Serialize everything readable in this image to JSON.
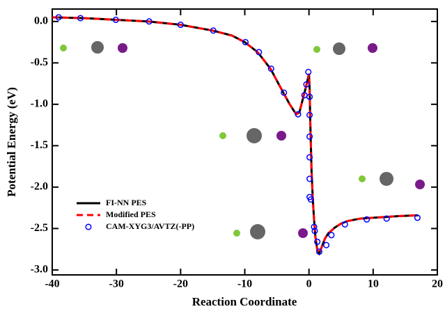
{
  "chart_data": {
    "type": "line",
    "x_label": "Reaction Coordinate",
    "y_label": "Potential Energy (eV)",
    "xlim": [
      -40,
      20
    ],
    "ylim": [
      -3.06,
      0.15
    ],
    "xticks": [
      -40,
      -30,
      -20,
      -10,
      0,
      10,
      20
    ],
    "yticks": [
      {
        "value": 0,
        "label": "0.0"
      },
      -0.5,
      {
        "value": -1,
        "label": "-1.0"
      },
      -1.5,
      {
        "value": -2,
        "label": "-2.0"
      },
      -2.5,
      {
        "value": -3,
        "label": "-3.0"
      }
    ],
    "x": [
      -40,
      -35,
      -30,
      -25,
      -20,
      -15,
      -12,
      -10,
      -8,
      -6,
      -4,
      -3,
      -2,
      -1.5,
      -1,
      -0.5,
      -0.2,
      0,
      0.1,
      0.2,
      0.4,
      0.6,
      0.8,
      1,
      1.3,
      1.6,
      2,
      2.5,
      3,
      4,
      5,
      6,
      8,
      10,
      12,
      14,
      17
    ],
    "series": [
      {
        "name": "FI-NN PES",
        "color": "#000000",
        "style": "solid",
        "values": [
          0.05,
          0.04,
          0.02,
          0,
          -0.04,
          -0.11,
          -0.17,
          -0.25,
          -0.37,
          -0.57,
          -0.86,
          -1.0,
          -1.12,
          -1.1,
          -0.95,
          -0.8,
          -0.7,
          -0.63,
          -0.8,
          -1.2,
          -1.8,
          -2.15,
          -2.4,
          -2.6,
          -2.76,
          -2.8,
          -2.72,
          -2.62,
          -2.56,
          -2.49,
          -2.44,
          -2.41,
          -2.38,
          -2.37,
          -2.36,
          -2.35,
          -2.34
        ]
      },
      {
        "name": "Modified PES",
        "color": "#ff0000",
        "style": "dashed",
        "values": [
          0.05,
          0.04,
          0.02,
          0,
          -0.04,
          -0.11,
          -0.17,
          -0.25,
          -0.37,
          -0.57,
          -0.86,
          -1.0,
          -1.12,
          -1.1,
          -0.95,
          -0.8,
          -0.7,
          -0.63,
          -0.8,
          -1.2,
          -1.8,
          -2.15,
          -2.4,
          -2.6,
          -2.76,
          -2.8,
          -2.72,
          -2.62,
          -2.56,
          -2.49,
          -2.44,
          -2.41,
          -2.38,
          -2.37,
          -2.36,
          -2.35,
          -2.34
        ]
      },
      {
        "name": "CAM-XYG3/AVTZ(-PP)",
        "color": "#0000ff",
        "style": "markers",
        "x": [
          -39.0,
          -35.6,
          -30.1,
          -24.9,
          -20.0,
          -14.9,
          -9.9,
          -7.8,
          -5.9,
          -3.9,
          -1.7,
          -0.7,
          -0.4,
          -0.1,
          0.1,
          0.1,
          0.1,
          0.1,
          0.1,
          0.1,
          0.3,
          0.8,
          0.9,
          1.3,
          1.6,
          2.7,
          3.5,
          5.6,
          9.0,
          12.1,
          16.9
        ],
        "values": [
          0.05,
          0.04,
          0.02,
          0,
          -0.04,
          -0.11,
          -0.25,
          -0.37,
          -0.57,
          -0.86,
          -1.12,
          -0.89,
          -0.76,
          -0.61,
          -0.91,
          -1.13,
          -1.39,
          -1.64,
          -1.9,
          -2.12,
          -2.15,
          -2.48,
          -2.53,
          -2.66,
          -2.78,
          -2.7,
          -2.58,
          -2.45,
          -2.39,
          -2.38,
          -2.37
        ]
      }
    ],
    "legend_position": "lower left"
  }
}
